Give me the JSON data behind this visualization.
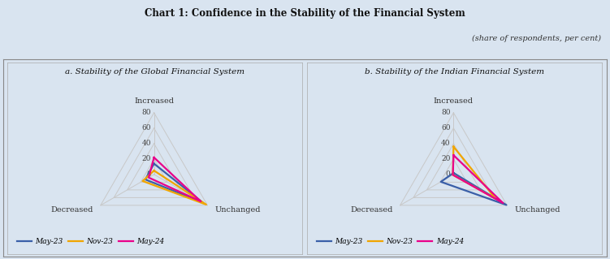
{
  "title": "Chart 1: Confidence in the Stability of the Financial System",
  "subtitle": "(share of respondents, per cent)",
  "background_color": "#d9e4f0",
  "panel_bg": "#d9e4f0",
  "axes_labels": [
    "Increased",
    "Unchanged",
    "Decreased"
  ],
  "radar_max": 80,
  "radar_ticks": [
    0,
    20,
    40,
    60,
    80
  ],
  "series_labels": [
    "May-23",
    "Nov-23",
    "May-24"
  ],
  "series_colors": [
    "#3a5fa8",
    "#f0a500",
    "#e9008a"
  ],
  "chart_a_title": "a. Stability of the Global Financial System",
  "chart_b_title": "b. Stability of the Indian Financial System",
  "chart_a_data": {
    "May-23": [
      14,
      73,
      13
    ],
    "Nov-23": [
      5,
      78,
      17
    ],
    "May-24": [
      22,
      70,
      8
    ]
  },
  "chart_b_data": {
    "May-23": [
      2,
      79,
      19
    ],
    "Nov-23": [
      36,
      63,
      1
    ],
    "May-24": [
      25,
      74,
      1
    ]
  }
}
